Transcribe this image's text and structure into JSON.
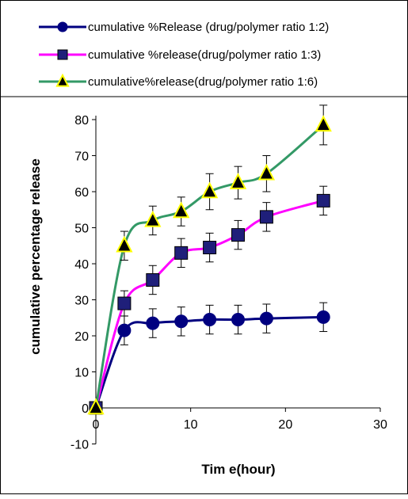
{
  "chart_data": {
    "type": "line",
    "title": "",
    "xlabel": "Tim e(hour)",
    "ylabel": "cumulative percentage release",
    "xlim": [
      0,
      30
    ],
    "ylim": [
      -10,
      85
    ],
    "xticks": [
      0,
      10,
      20,
      30
    ],
    "yticks": [
      -10,
      0,
      10,
      20,
      30,
      40,
      50,
      60,
      70,
      80
    ],
    "grid": false,
    "legend_placement": "top",
    "x": [
      0,
      3,
      6,
      9,
      12,
      15,
      18,
      24
    ],
    "series": [
      {
        "name": "cumulative %Release (drug/polymer ratio 1:2)",
        "marker": "circle",
        "color": "#000080",
        "values": [
          0,
          21.5,
          23.5,
          24,
          24.5,
          24.5,
          24.8,
          25.2
        ],
        "errors": [
          0,
          4,
          4,
          4,
          4,
          4,
          4,
          4
        ]
      },
      {
        "name": "cumulative %release(drug/polymer ratio 1:3)",
        "marker": "square",
        "color": "#ff00ff",
        "values": [
          0,
          29,
          35.5,
          43,
          44.5,
          48,
          53,
          57.5
        ],
        "errors": [
          0,
          3.5,
          4,
          4,
          4,
          4,
          4,
          4
        ]
      },
      {
        "name": "cumulative%release(drug/polymer ratio 1:6)",
        "marker": "triangle",
        "color": "#339966",
        "values": [
          0,
          45,
          52,
          54.5,
          60,
          62.5,
          65,
          78.5
        ],
        "errors": [
          0,
          4,
          4,
          4,
          5,
          4.5,
          5,
          5.5
        ]
      }
    ]
  }
}
